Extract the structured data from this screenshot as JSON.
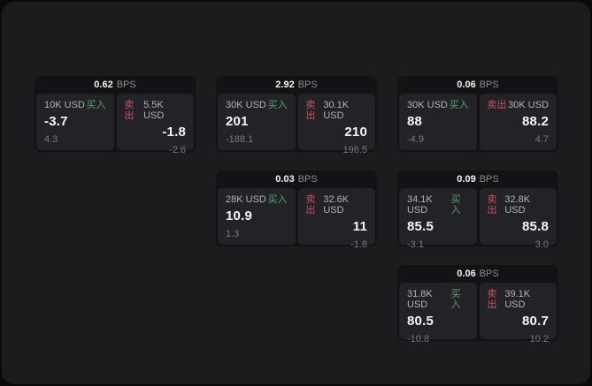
{
  "labels": {
    "bps_unit": "BPS",
    "buy": "买入",
    "sell": "卖出"
  },
  "colors": {
    "page_background": "#1c1c1e",
    "card_background": "#131315",
    "panel_background": "#232327",
    "buy_green": "#55a568",
    "sell_red": "#cc5065",
    "value_white": "#f5f5f6",
    "muted_gray": "#79797d"
  },
  "cards": [
    {
      "bps": "0.62",
      "buy": {
        "amount": "10K USD",
        "price": "-3.7",
        "change": "4.3"
      },
      "sell": {
        "amount": "5.5K USD",
        "price": "-1.8",
        "change": "-2.6"
      }
    },
    {
      "bps": "2.92",
      "buy": {
        "amount": "30K USD",
        "price": "201",
        "change": "-188.1"
      },
      "sell": {
        "amount": "30.1K USD",
        "price": "210",
        "change": "196.5"
      }
    },
    {
      "bps": "0.06",
      "buy": {
        "amount": "30K USD",
        "price": "88",
        "change": "-4.9"
      },
      "sell": {
        "amount": "30K USD",
        "price": "88.2",
        "change": "4.7"
      }
    },
    {
      "bps": "0.03",
      "buy": {
        "amount": "28K USD",
        "price": "10.9",
        "change": "1.3"
      },
      "sell": {
        "amount": "32.6K USD",
        "price": "11",
        "change": "-1.8"
      }
    },
    {
      "bps": "0.09",
      "buy": {
        "amount": "34.1K USD",
        "price": "85.5",
        "change": "-3.1"
      },
      "sell": {
        "amount": "32.8K USD",
        "price": "85.8",
        "change": "3.0"
      }
    },
    {
      "bps": "0.06",
      "buy": {
        "amount": "31.8K USD",
        "price": "80.5",
        "change": "-10.8"
      },
      "sell": {
        "amount": "39.1K USD",
        "price": "80.7",
        "change": "10.2"
      }
    }
  ]
}
